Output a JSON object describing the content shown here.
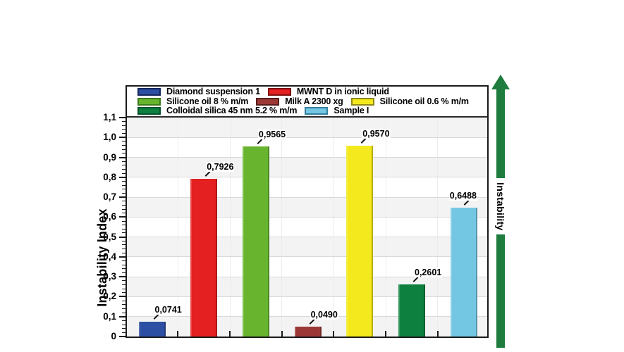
{
  "chart_data": {
    "type": "bar",
    "title": "",
    "ylabel": "Instability Index",
    "xlabel": "",
    "ylim": [
      0,
      1.1
    ],
    "y_major_step": 0.1,
    "y_minor_per_major": 4,
    "yticks": [
      "0",
      "0,1",
      "0,2",
      "0,3",
      "0,4",
      "0,5",
      "0,6",
      "0,7",
      "0,8",
      "0,9",
      "1,0",
      "1,1"
    ],
    "grid": true,
    "band_shading": true,
    "legend_position": "top",
    "decimal_separator": ",",
    "bars": [
      {
        "name": "Diamond suspension 1",
        "value": 0.0741,
        "label": "0,0741",
        "color": "#2d4fa3",
        "edge": "#14275d"
      },
      {
        "name": "MWNT D in ionic liquid",
        "value": 0.7926,
        "label": "0,7926",
        "color": "#e42020",
        "edge": "#7e0f0f"
      },
      {
        "name": "Silicone oil 8 % m/m",
        "value": 0.9565,
        "label": "0,9565",
        "color": "#68b42f",
        "edge": "#3c7a1b"
      },
      {
        "name": "Milk A 2300 xg",
        "value": 0.049,
        "label": "0,0490",
        "color": "#9c3936",
        "edge": "#571d1b"
      },
      {
        "name": "Silicone oil 0.6 % m/m",
        "value": 0.957,
        "label": "0,9570",
        "color": "#f3e91d",
        "edge": "#8f871a"
      },
      {
        "name": "Colloidal silica 45 nm 5.2 % m/m",
        "value": 0.2601,
        "label": "0,2601",
        "color": "#0d8040",
        "edge": "#05512a"
      },
      {
        "name": "Sample I",
        "value": 0.6488,
        "label": "0,6488",
        "color": "#74c7e3",
        "edge": "#357f9e"
      }
    ],
    "legend_rows": [
      [
        0,
        1
      ],
      [
        2,
        3,
        4
      ],
      [
        5,
        6
      ]
    ],
    "annotation": {
      "label": "Instability",
      "color": "#1e7c3e",
      "direction": "up"
    },
    "colors": {
      "frame": "#1a1a1a",
      "gridline": "#d9d9d9",
      "band": "#f3f3f3",
      "background": "#ffffff"
    }
  }
}
